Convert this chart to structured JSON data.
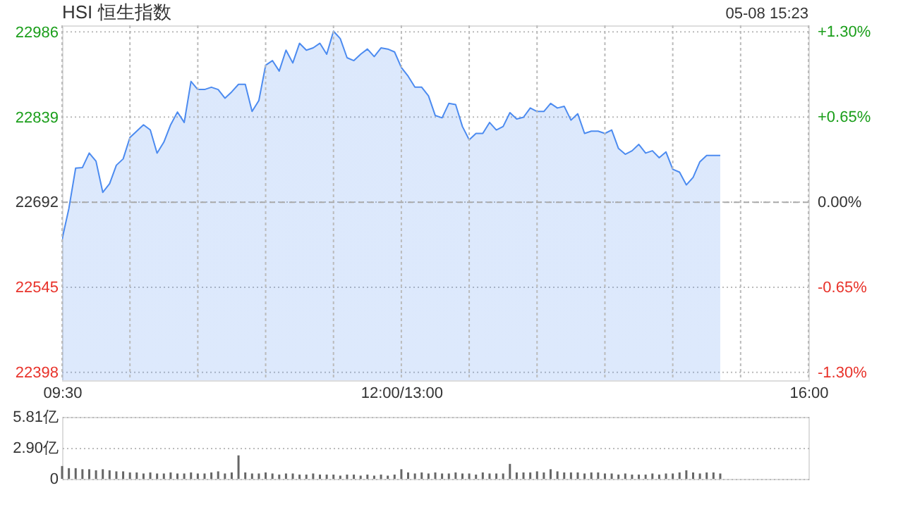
{
  "chart_data": [
    {
      "type": "area",
      "title": "HSI 恒生指数",
      "annotations": [
        "05-08 15:23"
      ],
      "categories": [
        "09:30",
        null,
        null,
        null,
        null,
        null,
        null,
        null,
        null,
        null,
        null,
        null,
        null,
        null,
        null,
        null,
        null,
        null,
        null,
        null,
        null,
        null,
        null,
        null,
        null,
        null,
        null,
        null,
        null,
        null,
        null,
        null,
        null,
        null,
        null,
        null,
        null,
        null,
        null,
        null,
        null,
        null,
        null,
        null,
        null,
        null,
        null,
        null,
        null,
        null,
        "12:00/13:00",
        null,
        null,
        null,
        null,
        null,
        null,
        null,
        null,
        null,
        null,
        null,
        null,
        null,
        null,
        null,
        null,
        null,
        null,
        null,
        null,
        null,
        null,
        null,
        null,
        null,
        null,
        null,
        null,
        null,
        null,
        null,
        null,
        null,
        null,
        null,
        null,
        null,
        null,
        null,
        null,
        null,
        null,
        null,
        null,
        null,
        null,
        null,
        null,
        null,
        null,
        null,
        null,
        null,
        null,
        null,
        null,
        null,
        null,
        null,
        "16:00"
      ],
      "ylim": [
        22384,
        22998
      ],
      "yticks": [
        22398,
        22545,
        22692,
        22839,
        22986
      ],
      "y2lim": [
        -1.36,
        1.35
      ],
      "y2ticks": [
        {
          "value": -1.3,
          "label": "-1.30%"
        },
        {
          "value": -0.65,
          "label": "-0.65%"
        },
        {
          "value": 0,
          "label": "0.00%"
        },
        {
          "value": 0.65,
          "label": "+0.65%"
        },
        {
          "value": 1.3,
          "label": "+1.30%"
        }
      ],
      "ref_lines": [
        {
          "axis": "y",
          "value": 22692,
          "color": "#aaaaaa",
          "line_style": "dashed"
        }
      ],
      "grid": true,
      "series": [
        {
          "color": "#4c8bf0",
          "values": [
            22628,
            22681,
            22751,
            22752,
            22777,
            22763,
            22709,
            22724,
            22756,
            22767,
            22804,
            22815,
            22826,
            22817,
            22777,
            22796,
            22826,
            22848,
            22830,
            22901,
            22887,
            22887,
            22891,
            22887,
            22872,
            22883,
            22896,
            22896,
            22849,
            22868,
            22929,
            22937,
            22919,
            22955,
            22933,
            22967,
            22955,
            22959,
            22967,
            22948,
            22988,
            22975,
            22942,
            22937,
            22948,
            22957,
            22944,
            22959,
            22957,
            22952,
            22925,
            22910,
            22891,
            22891,
            22876,
            22842,
            22838,
            22863,
            22861,
            22823,
            22800,
            22811,
            22811,
            22830,
            22817,
            22823,
            22847,
            22836,
            22839,
            22855,
            22849,
            22849,
            22863,
            22855,
            22858,
            22834,
            22845,
            22811,
            22815,
            22815,
            22811,
            22817,
            22785,
            22775,
            22781,
            22792,
            22777,
            22781,
            22769,
            22779,
            22749,
            22744,
            22722,
            22735,
            22762,
            22773,
            22773,
            22773,
            null,
            null,
            null,
            null,
            null,
            null,
            null,
            null,
            null,
            null,
            null,
            null,
            null
          ]
        }
      ]
    },
    {
      "type": "bar",
      "color": "#666666",
      "ylim": [
        0,
        5.81
      ],
      "yticks": [
        0,
        {
          "value": 2.9,
          "label": "2.90亿"
        },
        {
          "value": 5.81,
          "label": "5.81亿"
        }
      ],
      "grid": "y",
      "tick_labels": "y",
      "categories": [
        null,
        null,
        null,
        null,
        null,
        null,
        null,
        null,
        null,
        null,
        null,
        null,
        null,
        null,
        null,
        null,
        null,
        null,
        null,
        null,
        null,
        null,
        null,
        null,
        null,
        null,
        null,
        null,
        null,
        null,
        null,
        null,
        null,
        null,
        null,
        null,
        null,
        null,
        null,
        null,
        null,
        null,
        null,
        null,
        null,
        null,
        null,
        null,
        null,
        null,
        null,
        null,
        null,
        null,
        null,
        null,
        null,
        null,
        null,
        null,
        null,
        null,
        null,
        null,
        null,
        null,
        null,
        null,
        null,
        null,
        null,
        null,
        null,
        null,
        null,
        null,
        null,
        null,
        null,
        null,
        null,
        null,
        null,
        null,
        null,
        null,
        null,
        null,
        null,
        null,
        null,
        null,
        null,
        null,
        null,
        null,
        null,
        null,
        null,
        null,
        null,
        null,
        null,
        null,
        null,
        null,
        null,
        null,
        null,
        null,
        null
      ],
      "values": [
        1.2,
        1.0,
        1.0,
        0.9,
        0.9,
        0.8,
        0.9,
        0.8,
        0.7,
        0.7,
        0.6,
        0.6,
        0.5,
        0.6,
        0.5,
        0.5,
        0.6,
        0.5,
        0.5,
        0.6,
        0.5,
        0.5,
        0.6,
        0.7,
        0.5,
        0.6,
        2.2,
        0.6,
        0.5,
        0.5,
        0.6,
        0.5,
        0.4,
        0.5,
        0.5,
        0.4,
        0.4,
        0.5,
        0.4,
        0.4,
        0.4,
        0.3,
        0.4,
        0.4,
        0.3,
        0.4,
        0.3,
        0.4,
        0.3,
        0.4,
        0.9,
        0.6,
        0.5,
        0.6,
        0.5,
        0.6,
        0.5,
        0.5,
        0.6,
        0.5,
        0.5,
        0.4,
        0.6,
        0.5,
        0.5,
        0.5,
        1.4,
        0.6,
        0.6,
        0.6,
        0.7,
        0.6,
        0.9,
        0.7,
        0.6,
        0.6,
        0.6,
        0.5,
        0.6,
        0.6,
        0.5,
        0.5,
        0.4,
        0.5,
        0.4,
        0.4,
        0.4,
        0.5,
        0.4,
        0.5,
        0.5,
        0.6,
        0.8,
        0.6,
        0.5,
        0.6,
        0.6,
        0.5,
        null,
        null,
        null,
        null,
        null,
        null,
        null,
        null,
        null,
        null,
        null,
        null,
        null
      ]
    }
  ]
}
